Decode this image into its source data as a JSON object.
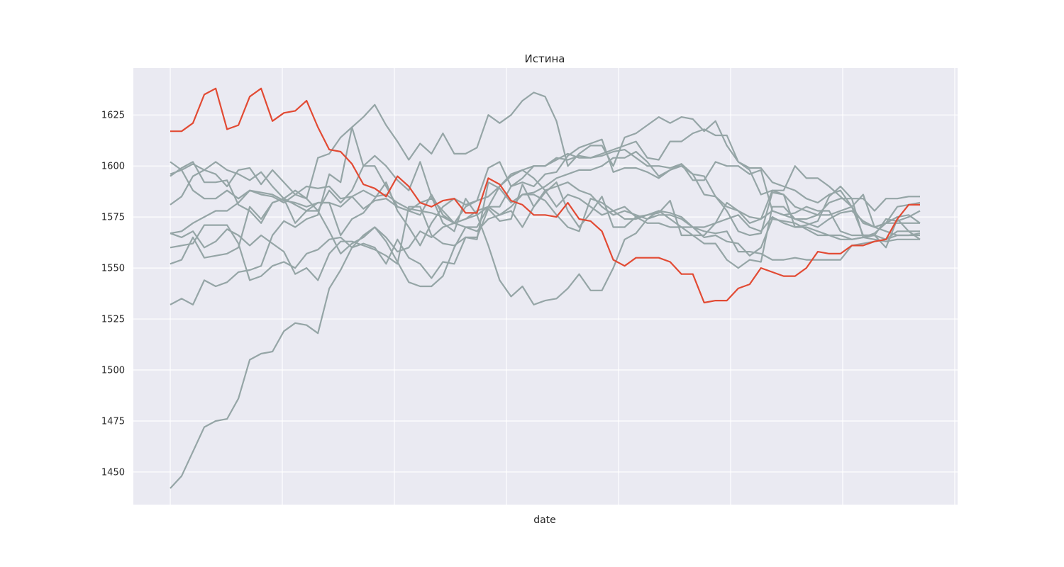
{
  "chart_data": {
    "type": "line",
    "title": "Истина",
    "xlabel": "date",
    "ylabel": "",
    "ylim": [
      1434,
      1648
    ],
    "yticks": [
      1450,
      1475,
      1500,
      1525,
      1550,
      1575,
      1600,
      1625
    ],
    "x_tick_labels": [],
    "n_points": 67,
    "grid": true,
    "legend": "none",
    "colors": {
      "background": "#eaeaf2",
      "grid": "#ffffff",
      "highlight": "#e24a33",
      "other": "#95a5a6"
    },
    "series": [
      {
        "color": "#95a5a6",
        "values": [
          1602,
          1598,
          1588,
          1584,
          1584,
          1588,
          1584,
          1588,
          1587,
          1586,
          1583,
          1582,
          1580,
          1582,
          1582,
          1580,
          1585,
          1588,
          1585,
          1586,
          1582,
          1579,
          1578,
          1577,
          1575,
          1572,
          1570,
          1568,
          1574,
          1576,
          1578,
          1570,
          1580,
          1588,
          1590,
          1592,
          1588,
          1586,
          1580,
          1576,
          1578,
          1576,
          1574,
          1576,
          1576,
          1574,
          1570,
          1570,
          1572,
          1582,
          1578,
          1572,
          1574,
          1578,
          1576,
          1574,
          1572,
          1570,
          1574,
          1577,
          1578,
          1573,
          1570,
          1568,
          1566,
          1566,
          1567
        ]
      },
      {
        "color": "#95a5a6",
        "values": [
          1595,
          1599,
          1602,
          1592,
          1592,
          1593,
          1581,
          1578,
          1572,
          1582,
          1584,
          1581,
          1578,
          1582,
          1582,
          1566,
          1574,
          1577,
          1584,
          1592,
          1578,
          1570,
          1561,
          1572,
          1580,
          1584,
          1581,
          1583,
          1599,
          1602,
          1590,
          1594,
          1600,
          1600,
          1604,
          1603,
          1605,
          1604,
          1606,
          1608,
          1610,
          1612,
          1604,
          1603,
          1612,
          1612,
          1616,
          1618,
          1615,
          1615,
          1602,
          1599,
          1599,
          1592,
          1590,
          1588,
          1584,
          1582,
          1586,
          1588,
          1580,
          1586,
          1570,
          1572,
          1580,
          1581,
          1582
        ]
      },
      {
        "color": "#95a5a6",
        "values": [
          1581,
          1585,
          1595,
          1598,
          1596,
          1590,
          1598,
          1599,
          1591,
          1598,
          1592,
          1586,
          1584,
          1604,
          1606,
          1614,
          1619,
          1624,
          1630,
          1620,
          1612,
          1603,
          1611,
          1606,
          1616,
          1606,
          1606,
          1609,
          1625,
          1621,
          1625,
          1632,
          1636,
          1634,
          1622,
          1600,
          1606,
          1610,
          1610,
          1600,
          1614,
          1616,
          1620,
          1624,
          1621,
          1624,
          1623,
          1617,
          1622,
          1610,
          1602,
          1598,
          1586,
          1588,
          1588,
          1600,
          1594,
          1594,
          1590,
          1585,
          1580,
          1572,
          1570,
          1572,
          1575,
          1576,
          1572
        ]
      },
      {
        "color": "#95a5a6",
        "values": [
          1567,
          1568,
          1572,
          1575,
          1578,
          1578,
          1582,
          1588,
          1586,
          1585,
          1582,
          1586,
          1590,
          1589,
          1590,
          1584,
          1585,
          1579,
          1583,
          1584,
          1580,
          1578,
          1576,
          1586,
          1576,
          1572,
          1574,
          1578,
          1580,
          1576,
          1580,
          1586,
          1587,
          1590,
          1594,
          1596,
          1598,
          1598,
          1600,
          1604,
          1604,
          1607,
          1602,
          1595,
          1598,
          1600,
          1596,
          1595,
          1585,
          1580,
          1578,
          1575,
          1574,
          1588,
          1586,
          1570,
          1571,
          1573,
          1585,
          1590,
          1584,
          1584,
          1578,
          1584,
          1584,
          1585,
          1585
        ]
      },
      {
        "color": "#95a5a6",
        "values": [
          1567,
          1565,
          1568,
          1560,
          1563,
          1569,
          1566,
          1561,
          1566,
          1562,
          1558,
          1547,
          1550,
          1544,
          1557,
          1563,
          1563,
          1561,
          1559,
          1556,
          1552,
          1580,
          1580,
          1566,
          1562,
          1561,
          1565,
          1564,
          1592,
          1589,
          1582,
          1586,
          1586,
          1583,
          1576,
          1570,
          1568,
          1584,
          1582,
          1578,
          1580,
          1575,
          1572,
          1572,
          1570,
          1570,
          1570,
          1565,
          1566,
          1563,
          1562,
          1556,
          1560,
          1574,
          1573,
          1572,
          1569,
          1566,
          1566,
          1566,
          1564,
          1565,
          1566,
          1564,
          1568,
          1568,
          1568
        ]
      },
      {
        "color": "#95a5a6",
        "values": [
          1560,
          1561,
          1562,
          1571,
          1571,
          1571,
          1562,
          1544,
          1546,
          1551,
          1553,
          1550,
          1557,
          1559,
          1564,
          1565,
          1560,
          1562,
          1560,
          1552,
          1564,
          1555,
          1552,
          1545,
          1553,
          1552,
          1565,
          1565,
          1579,
          1573,
          1574,
          1591,
          1580,
          1587,
          1592,
          1578,
          1570,
          1577,
          1585,
          1570,
          1570,
          1575,
          1576,
          1577,
          1583,
          1566,
          1566,
          1562,
          1562,
          1554,
          1550,
          1554,
          1553,
          1580,
          1580,
          1574,
          1574,
          1576,
          1582,
          1584,
          1584,
          1565,
          1567,
          1572,
          1572,
          1572,
          1572
        ]
      },
      {
        "color": "#95a5a6",
        "values": [
          1552,
          1554,
          1565,
          1555,
          1556,
          1557,
          1560,
          1580,
          1574,
          1582,
          1584,
          1572,
          1578,
          1578,
          1568,
          1557,
          1562,
          1565,
          1570,
          1563,
          1553,
          1543,
          1541,
          1541,
          1546,
          1560,
          1570,
          1570,
          1580,
          1580,
          1590,
          1592,
          1590,
          1596,
          1597,
          1605,
          1609,
          1611,
          1613,
          1597,
          1599,
          1599,
          1597,
          1594,
          1598,
          1601,
          1593,
          1593,
          1602,
          1600,
          1600,
          1596,
          1598,
          1578,
          1576,
          1577,
          1580,
          1578,
          1578,
          1568,
          1566,
          1566,
          1566,
          1574,
          1573,
          1575,
          1578
        ]
      },
      {
        "color": "#95a5a6",
        "values": [
          1532,
          1535,
          1532,
          1544,
          1541,
          1543,
          1548,
          1549,
          1551,
          1566,
          1573,
          1570,
          1574,
          1576,
          1596,
          1592,
          1619,
          1600,
          1605,
          1600,
          1593,
          1588,
          1602,
          1585,
          1572,
          1568,
          1584,
          1576,
          1561,
          1544,
          1536,
          1541,
          1532,
          1534,
          1535,
          1540,
          1547,
          1539,
          1539,
          1550,
          1564,
          1567,
          1574,
          1578,
          1577,
          1575,
          1570,
          1568,
          1567,
          1568,
          1558,
          1558,
          1557,
          1554,
          1554,
          1555,
          1554,
          1554,
          1554,
          1554,
          1561,
          1562,
          1563,
          1564,
          1566,
          1566,
          1566
        ]
      },
      {
        "color": "#95a5a6",
        "values": [
          1442,
          1448,
          1460,
          1472,
          1475,
          1476,
          1486,
          1505,
          1508,
          1509,
          1519,
          1523,
          1522,
          1518,
          1540,
          1549,
          1560,
          1566,
          1570,
          1565,
          1558,
          1560,
          1568,
          1565,
          1570,
          1572,
          1580,
          1583,
          1585,
          1590,
          1595,
          1598,
          1600,
          1600,
          1603,
          1606,
          1604,
          1604,
          1605,
          1607,
          1608,
          1604,
          1600,
          1600,
          1599,
          1601,
          1596,
          1586,
          1585,
          1578,
          1568,
          1566,
          1567,
          1587,
          1586,
          1580,
          1578,
          1576,
          1576,
          1578,
          1580,
          1566,
          1566,
          1560,
          1574,
          1568,
          1564
        ]
      },
      {
        "color": "#95a5a6",
        "values": [
          1596,
          1598,
          1601,
          1598,
          1602,
          1598,
          1596,
          1593,
          1597,
          1590,
          1584,
          1588,
          1584,
          1578,
          1588,
          1582,
          1588,
          1600,
          1600,
          1590,
          1580,
          1578,
          1582,
          1584,
          1578,
          1572,
          1574,
          1576,
          1580,
          1590,
          1596,
          1598,
          1594,
          1588,
          1580,
          1586,
          1584,
          1580,
          1576,
          1578,
          1574,
          1574,
          1576,
          1578,
          1574,
          1570,
          1566,
          1566,
          1572,
          1574,
          1576,
          1570,
          1568,
          1575,
          1572,
          1570,
          1570,
          1568,
          1566,
          1564,
          1564,
          1565,
          1564,
          1563,
          1564,
          1564,
          1564
        ]
      },
      {
        "color": "#e24a33",
        "values": [
          1617,
          1617,
          1621,
          1635,
          1638,
          1618,
          1620,
          1634,
          1638,
          1622,
          1626,
          1627,
          1632,
          1619,
          1608,
          1607,
          1601,
          1591,
          1589,
          1585,
          1595,
          1590,
          1582,
          1580,
          1583,
          1584,
          1577,
          1577,
          1594,
          1591,
          1583,
          1581,
          1576,
          1576,
          1575,
          1582,
          1574,
          1573,
          1568,
          1554,
          1551,
          1555,
          1555,
          1555,
          1553,
          1547,
          1547,
          1533,
          1534,
          1534,
          1540,
          1542,
          1550,
          1548,
          1546,
          1546,
          1550,
          1558,
          1557,
          1557,
          1561,
          1561,
          1563,
          1564,
          1574,
          1581,
          1581
        ]
      }
    ]
  }
}
